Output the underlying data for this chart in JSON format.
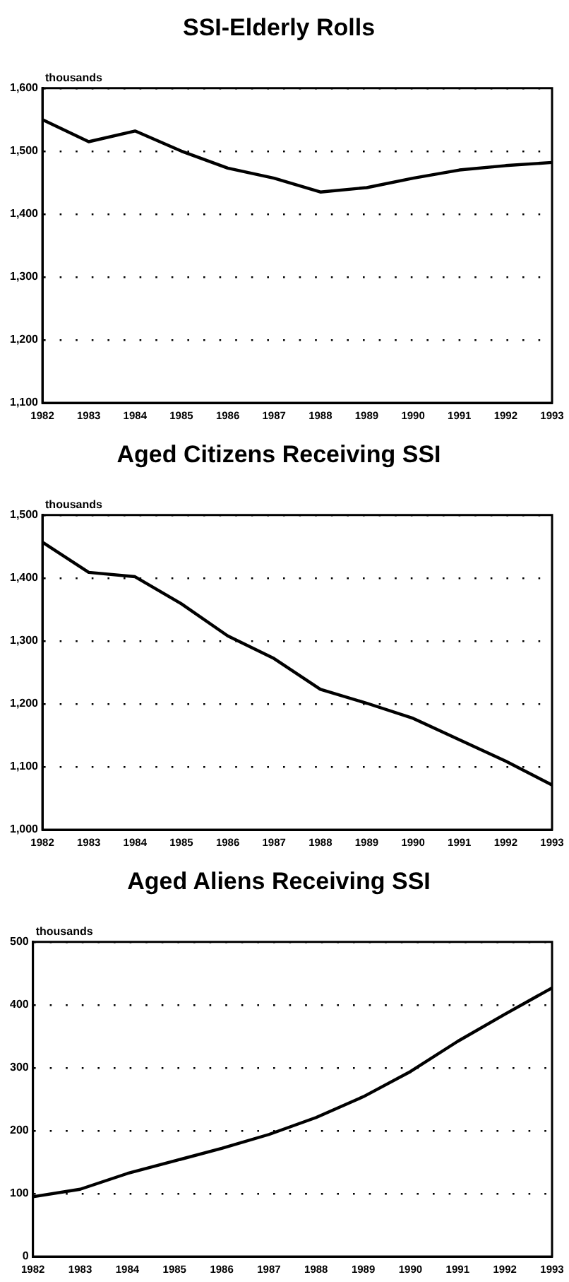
{
  "chart_data": [
    {
      "type": "line",
      "title": "SSI-Elderly Rolls",
      "ylabel": "thousands",
      "categories": [
        "1982",
        "1983",
        "1984",
        "1985",
        "1986",
        "1987",
        "1988",
        "1989",
        "1990",
        "1991",
        "1992",
        "1993"
      ],
      "series": [
        {
          "color": "#000000",
          "values": [
            1550,
            1515,
            1532,
            1500,
            1473,
            1457,
            1435,
            1442,
            1457,
            1470,
            1477,
            1482
          ]
        }
      ],
      "ylim": [
        1100,
        1600
      ],
      "yticks": [
        {
          "value": 1100,
          "label": "1,100"
        },
        {
          "value": 1200,
          "label": "1,200"
        },
        {
          "value": 1300,
          "label": "1,300"
        },
        {
          "value": 1400,
          "label": "1,400"
        },
        {
          "value": 1500,
          "label": "1,500"
        },
        {
          "value": 1600,
          "label": "1,600"
        }
      ],
      "grid": "y",
      "legend": false,
      "marker": "none",
      "line_style": "solid"
    },
    {
      "type": "line",
      "title": "Aged Citizens Receiving SSI",
      "ylabel": "thousands",
      "categories": [
        "1982",
        "1983",
        "1984",
        "1985",
        "1986",
        "1987",
        "1988",
        "1989",
        "1990",
        "1991",
        "1992",
        "1993"
      ],
      "series": [
        {
          "color": "#000000",
          "values": [
            1457,
            1409,
            1402,
            1359,
            1308,
            1272,
            1223,
            1201,
            1177,
            1143,
            1109,
            1071
          ]
        }
      ],
      "ylim": [
        1000,
        1500
      ],
      "yticks": [
        {
          "value": 1000,
          "label": "1,000"
        },
        {
          "value": 1100,
          "label": "1,100"
        },
        {
          "value": 1200,
          "label": "1,200"
        },
        {
          "value": 1300,
          "label": "1,300"
        },
        {
          "value": 1400,
          "label": "1,400"
        },
        {
          "value": 1500,
          "label": "1,500"
        }
      ],
      "grid": "y",
      "legend": false,
      "marker": "none",
      "line_style": "solid"
    },
    {
      "type": "line",
      "title": "Aged Aliens Receiving SSI",
      "ylabel": "thousands",
      "categories": [
        "1982",
        "1983",
        "1984",
        "1985",
        "1986",
        "1987",
        "1988",
        "1989",
        "1990",
        "1991",
        "1992",
        "1993"
      ],
      "series": [
        {
          "color": "#000000",
          "values": [
            95,
            107,
            132,
            152,
            172,
            194,
            221,
            254,
            294,
            342,
            385,
            427
          ]
        }
      ],
      "ylim": [
        0,
        500
      ],
      "yticks": [
        0,
        100,
        200,
        300,
        400,
        500
      ],
      "grid": "y",
      "legend": false,
      "marker": "none",
      "line_style": "solid"
    }
  ]
}
